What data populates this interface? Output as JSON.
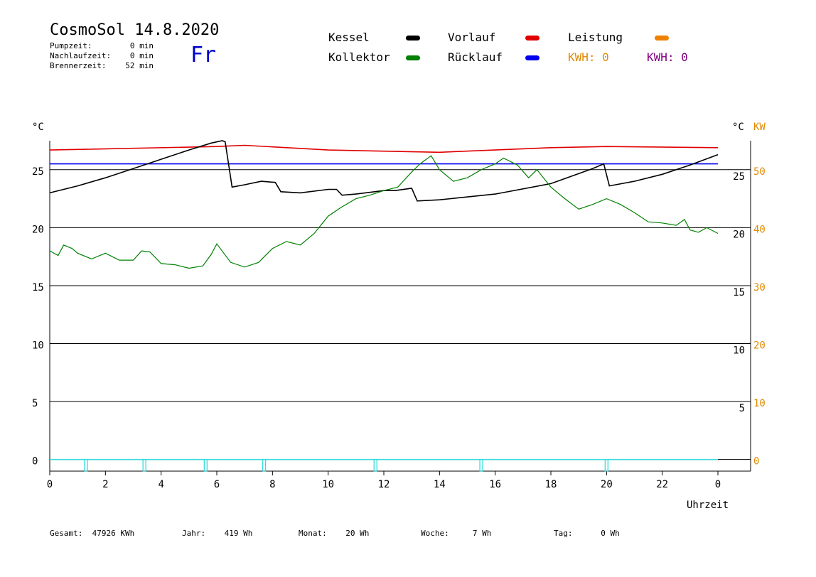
{
  "header": {
    "title": "CosmoSol 14.8.2020",
    "day": "Fr",
    "info": [
      {
        "label": "Pumpzeit:",
        "value": "0 min"
      },
      {
        "label": "Nachlaufzeit:",
        "value": "0 min"
      },
      {
        "label": "Brennerzeit:",
        "value": "52 min"
      }
    ]
  },
  "legend": {
    "kessel": "Kessel",
    "kollektor": "Kollektor",
    "vorlauf": "Vorlauf",
    "ruecklauf": "Rücklauf",
    "leistung": "Leistung",
    "kwh_orange": "KWH: 0",
    "kwh_purple": "KWH: 0"
  },
  "colors": {
    "kessel": "#000000",
    "kollektor": "#008000",
    "vorlauf": "#e00000",
    "ruecklauf": "#0000ee",
    "leistung": "#f08000",
    "kwh_orange": "#e08a00",
    "kwh_purple": "#800080",
    "pump": "#33dddd"
  },
  "footer": {
    "gesamt": "Gesamt:  47926 KWh",
    "jahr": "Jahr:    419 Wh",
    "monat": "Monat:    20 Wh",
    "woche": "Woche:     7 Wh",
    "tag": "Tag:      0 Wh"
  },
  "chart_data": {
    "type": "line",
    "xlabel": "Uhrzeit",
    "x_ticks": [
      "0",
      "2",
      "4",
      "6",
      "8",
      "10",
      "12",
      "14",
      "16",
      "18",
      "20",
      "22",
      "0"
    ],
    "xlim": [
      0,
      24
    ],
    "ylabel_left": "°C",
    "ylabel_right_c": "°C",
    "ylabel_right_kw": "KW",
    "ylim_left": [
      -1,
      27.5
    ],
    "left_ticks": [
      "25",
      "20",
      "15",
      "10",
      "5",
      "0"
    ],
    "right_c_ticks": [
      "25",
      "20",
      "15",
      "10",
      "5"
    ],
    "right_kw_ticks": [
      "50",
      "40",
      "30",
      "20",
      "10",
      "0"
    ],
    "grid": true,
    "series": [
      {
        "name": "Vorlauf",
        "x": [
          0,
          6,
          7,
          10,
          14,
          18,
          20,
          24
        ],
        "y": [
          26.7,
          27.0,
          27.1,
          26.7,
          26.5,
          26.9,
          27.0,
          26.9
        ]
      },
      {
        "name": "Rücklauf",
        "x": [
          0,
          24
        ],
        "y": [
          25.5,
          25.5
        ]
      },
      {
        "name": "Kessel",
        "x": [
          0,
          1,
          2,
          3,
          4,
          5,
          5.8,
          6.2,
          6.3,
          6.55,
          7,
          7.6,
          8.1,
          8.3,
          9,
          10,
          10.3,
          10.5,
          11,
          12,
          12.4,
          13,
          13.2,
          14,
          16,
          18,
          19.5,
          19.9,
          20.1,
          21,
          22,
          23,
          24
        ],
        "y": [
          23.0,
          23.6,
          24.3,
          25.1,
          25.9,
          26.7,
          27.3,
          27.5,
          27.4,
          23.5,
          23.7,
          24.0,
          23.9,
          23.1,
          23.0,
          23.3,
          23.3,
          22.8,
          22.9,
          23.2,
          23.2,
          23.4,
          22.3,
          22.4,
          22.9,
          23.8,
          25.1,
          25.5,
          23.6,
          24.0,
          24.6,
          25.4,
          26.3
        ]
      },
      {
        "name": "Kollektor",
        "x": [
          0,
          0.3,
          0.5,
          0.8,
          1,
          1.5,
          2,
          2.5,
          3,
          3.3,
          3.6,
          4,
          4.5,
          5,
          5.5,
          5.8,
          6,
          6.5,
          7,
          7.5,
          8,
          8.5,
          9,
          9.5,
          10,
          10.5,
          11,
          11.5,
          12,
          12.5,
          13,
          13.3,
          13.7,
          14,
          14.5,
          15,
          15.5,
          16,
          16.3,
          16.8,
          17.2,
          17.5,
          18,
          18.5,
          19,
          19.5,
          20,
          20.5,
          21,
          21.5,
          22,
          22.5,
          22.8,
          23,
          23.3,
          23.6,
          24
        ],
        "y": [
          18.0,
          17.6,
          18.5,
          18.2,
          17.8,
          17.3,
          17.8,
          17.2,
          17.2,
          18.0,
          17.9,
          16.9,
          16.8,
          16.5,
          16.7,
          17.7,
          18.6,
          17.0,
          16.6,
          17.0,
          18.2,
          18.8,
          18.5,
          19.5,
          21.0,
          21.8,
          22.5,
          22.8,
          23.2,
          23.5,
          24.8,
          25.5,
          26.2,
          25.0,
          24.0,
          24.3,
          25.0,
          25.5,
          26.0,
          25.4,
          24.3,
          25.0,
          23.5,
          22.5,
          21.6,
          22.0,
          22.5,
          22.0,
          21.3,
          20.5,
          20.4,
          20.2,
          20.7,
          19.8,
          19.6,
          20.0,
          19.5
        ]
      }
    ],
    "pump_pulses_h": [
      1.3,
      3.4,
      5.6,
      7.7,
      11.7,
      15.5,
      20.0
    ]
  }
}
